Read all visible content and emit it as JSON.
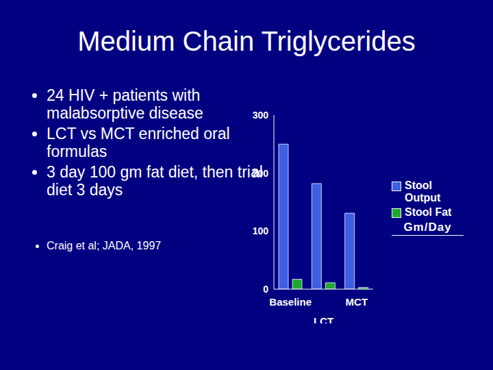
{
  "slide": {
    "title": "Medium Chain Triglycerides",
    "bullets": [
      "24 HIV + patients with malabsorptive disease",
      "LCT vs MCT enriched oral formulas",
      "3 day 100 gm fat diet, then trial diet 3 days"
    ],
    "citation": "Craig et al; JADA, 1997"
  },
  "chart_data": {
    "type": "bar",
    "categories": [
      "Baseline",
      "LCT",
      "MCT"
    ],
    "series": [
      {
        "name": "Stool Output",
        "color": "#3f5fe0",
        "values": [
          250,
          182,
          131
        ]
      },
      {
        "name": "Stool Fat",
        "color": "#1faa2a",
        "values": [
          17,
          11,
          3
        ]
      }
    ],
    "ylabel": "Gm/Day",
    "ylim": [
      0,
      300
    ],
    "yticks": [
      0,
      100,
      200,
      300
    ],
    "legend": "right"
  }
}
